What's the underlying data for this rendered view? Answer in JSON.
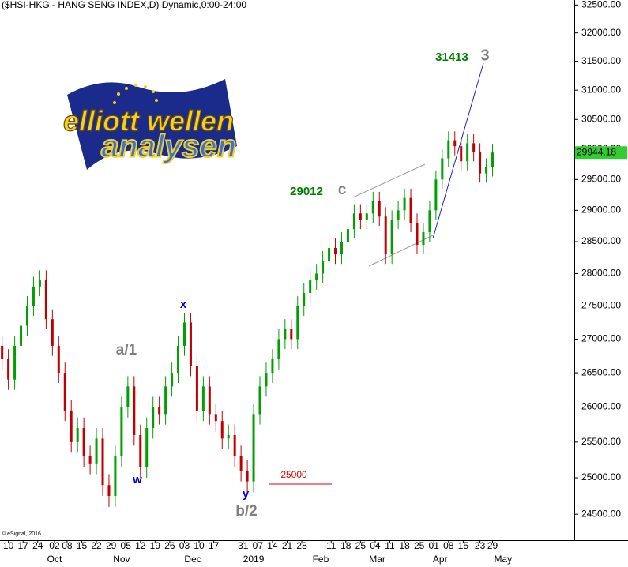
{
  "chart_data": {
    "type": "candlestick",
    "title": "($HSI-HKG - HANG SENG INDEX,D) Dynamic,0:00-24:00",
    "copyright": "© eSignal, 2016",
    "logo": {
      "line1": "elliott wellen",
      "line2": "analysen"
    },
    "y_scale": "log",
    "up_color": "#00a000",
    "down_color": "#c00000",
    "last_color": "#33cc33",
    "xlim": [
      0,
      274
    ],
    "ylim": [
      24150,
      32590
    ],
    "yticks": [
      {
        "value": 24500,
        "label": "24500.00"
      },
      {
        "value": 25000,
        "label": "25000.00"
      },
      {
        "value": 25500,
        "label": "25500.00"
      },
      {
        "value": 26000,
        "label": "26000.00"
      },
      {
        "value": 26500,
        "label": "26500.00"
      },
      {
        "value": 27000,
        "label": "27000.00"
      },
      {
        "value": 27500,
        "label": "27500.00"
      },
      {
        "value": 28000,
        "label": "28000.00"
      },
      {
        "value": 28500,
        "label": "28500.00"
      },
      {
        "value": 29000,
        "label": "29000.00"
      },
      {
        "value": 29500,
        "label": "29500.00"
      },
      {
        "value": 30000,
        "label": "30000.00"
      },
      {
        "value": 30500,
        "label": "30500.00"
      },
      {
        "value": 31000,
        "label": "31000.00"
      },
      {
        "value": 31500,
        "label": "31500.00"
      },
      {
        "value": 32000,
        "label": "32000.00"
      },
      {
        "value": 32500,
        "label": "32500.00"
      }
    ],
    "xticks": [
      {
        "value": 4,
        "label": "10"
      },
      {
        "value": 11,
        "label": "17"
      },
      {
        "value": 18,
        "label": "24"
      },
      {
        "value": 26,
        "label": "02"
      },
      {
        "value": 32,
        "label": "08"
      },
      {
        "value": 39,
        "label": "15"
      },
      {
        "value": 46,
        "label": "22"
      },
      {
        "value": 53,
        "label": "29"
      },
      {
        "value": 60,
        "label": "05"
      },
      {
        "value": 67,
        "label": "12"
      },
      {
        "value": 74,
        "label": "19"
      },
      {
        "value": 81,
        "label": "26"
      },
      {
        "value": 88,
        "label": "03"
      },
      {
        "value": 95,
        "label": "10"
      },
      {
        "value": 102,
        "label": "17"
      },
      {
        "value": 116,
        "label": "31"
      },
      {
        "value": 123,
        "label": "07"
      },
      {
        "value": 130,
        "label": "14"
      },
      {
        "value": 137,
        "label": "21"
      },
      {
        "value": 144,
        "label": "28"
      },
      {
        "value": 158,
        "label": "11"
      },
      {
        "value": 165,
        "label": "18"
      },
      {
        "value": 172,
        "label": "25"
      },
      {
        "value": 179,
        "label": "04"
      },
      {
        "value": 186,
        "label": "11"
      },
      {
        "value": 193,
        "label": "18"
      },
      {
        "value": 200,
        "label": "25"
      },
      {
        "value": 207,
        "label": "01"
      },
      {
        "value": 214,
        "label": "08"
      },
      {
        "value": 221,
        "label": "15"
      },
      {
        "value": 229,
        "label": "23"
      },
      {
        "value": 235,
        "label": "29"
      }
    ],
    "month_ticks": [
      {
        "value": 26,
        "label": "Oct"
      },
      {
        "value": 58,
        "label": "Nov"
      },
      {
        "value": 92,
        "label": "Dec"
      },
      {
        "value": 121,
        "label": "2019"
      },
      {
        "value": 153,
        "label": "Feb"
      },
      {
        "value": 180,
        "label": "Mar"
      },
      {
        "value": 210,
        "label": "Apr"
      },
      {
        "value": 240,
        "label": "May"
      }
    ],
    "x": [
      1,
      4,
      7,
      10,
      13,
      16,
      19,
      22,
      25,
      28,
      31,
      34,
      37,
      40,
      43,
      46,
      49,
      52,
      55,
      58,
      61,
      64,
      67,
      70,
      73,
      76,
      79,
      82,
      85,
      88,
      91,
      94,
      97,
      100,
      103,
      106,
      109,
      112,
      115,
      118,
      121,
      124,
      127,
      130,
      133,
      136,
      139,
      142,
      145,
      148,
      151,
      154,
      157,
      160,
      163,
      166,
      169,
      172,
      175,
      178,
      181,
      184,
      187,
      190,
      193,
      196,
      199,
      202,
      205,
      208,
      211,
      214,
      217,
      220,
      223,
      226,
      229,
      232,
      235
    ],
    "open": [
      26900,
      26700,
      26400,
      26900,
      27200,
      27500,
      27800,
      27900,
      27300,
      26900,
      26500,
      25950,
      25500,
      25700,
      25300,
      25200,
      25550,
      24900,
      24750,
      25300,
      26000,
      26300,
      25600,
      25150,
      25700,
      26000,
      25900,
      26300,
      26500,
      26900,
      27250,
      26600,
      25950,
      26300,
      25900,
      25800,
      25550,
      25600,
      25300,
      25100,
      24950,
      25900,
      26300,
      26500,
      26700,
      27000,
      27150,
      27000,
      27500,
      27700,
      27900,
      28000,
      28200,
      28400,
      28300,
      28500,
      28700,
      28950,
      28850,
      28950,
      29150,
      28900,
      28300,
      28850,
      29000,
      29200,
      28800,
      28450,
      28650,
      29000,
      29500,
      29850,
      30150,
      30050,
      29800,
      30100,
      29950,
      29600,
      29700
    ],
    "high": [
      27050,
      26850,
      27050,
      27350,
      27650,
      27950,
      28050,
      28050,
      27450,
      27050,
      26650,
      26100,
      25850,
      25850,
      25450,
      25700,
      25700,
      25050,
      25450,
      26150,
      26450,
      26450,
      25750,
      25850,
      26150,
      26150,
      26450,
      26650,
      27050,
      27400,
      27400,
      26750,
      26450,
      26450,
      26050,
      25950,
      25750,
      25750,
      25450,
      25250,
      26050,
      26450,
      26650,
      26850,
      27150,
      27300,
      27300,
      27650,
      27850,
      28050,
      28150,
      28350,
      28550,
      28550,
      28650,
      28850,
      29100,
      29100,
      29100,
      29300,
      29300,
      29050,
      29000,
      29150,
      29350,
      29350,
      28950,
      28800,
      29150,
      29650,
      30000,
      30300,
      30300,
      30200,
      30250,
      30250,
      30100,
      29850,
      30090
    ],
    "low": [
      26550,
      26250,
      26250,
      26750,
      27050,
      27350,
      27650,
      27150,
      26750,
      26350,
      25800,
      25350,
      25350,
      25150,
      25050,
      25050,
      24750,
      24600,
      24600,
      25150,
      25850,
      25450,
      25000,
      25000,
      25550,
      25750,
      25750,
      26150,
      26350,
      26750,
      26450,
      25800,
      25800,
      25750,
      25650,
      25400,
      25400,
      25150,
      24950,
      24800,
      24800,
      25750,
      26150,
      26350,
      26550,
      26850,
      26850,
      26850,
      27350,
      27550,
      27750,
      27850,
      28050,
      28150,
      28150,
      28350,
      28550,
      28700,
      28700,
      28800,
      28750,
      28150,
      28150,
      28700,
      28850,
      28650,
      28300,
      28300,
      28500,
      28850,
      29350,
      29700,
      29900,
      29650,
      29650,
      29800,
      29450,
      29450,
      29550
    ],
    "close": [
      26700,
      26400,
      26900,
      27200,
      27500,
      27800,
      27900,
      27300,
      26900,
      26500,
      25950,
      25500,
      25700,
      25300,
      25200,
      25550,
      24900,
      24750,
      25300,
      26000,
      26300,
      25600,
      25150,
      25700,
      26000,
      25900,
      26300,
      26500,
      26900,
      27250,
      26600,
      25950,
      26300,
      25900,
      25800,
      25550,
      25600,
      25300,
      25100,
      24950,
      25900,
      26300,
      26500,
      26700,
      27000,
      27150,
      27000,
      27500,
      27700,
      27900,
      28000,
      28200,
      28400,
      28300,
      28500,
      28700,
      28950,
      28850,
      28950,
      29150,
      28900,
      28300,
      28850,
      29000,
      29200,
      28800,
      28450,
      28650,
      29000,
      29500,
      29850,
      30150,
      30050,
      29800,
      30100,
      29950,
      29600,
      29700,
      29944.18
    ],
    "level": {
      "value": 25000,
      "color": "#e00000"
    },
    "annotations": [
      {
        "text": "31413",
        "color": "#008000"
      },
      {
        "text": "3",
        "color": "#808080"
      },
      {
        "text": "29012",
        "color": "#008000"
      },
      {
        "text": "c",
        "color": "#808080"
      },
      {
        "text": "x",
        "color": "#0000cc"
      },
      {
        "text": "a/1",
        "color": "#808080"
      },
      {
        "text": "w",
        "color": "#0000cc"
      },
      {
        "text": "y",
        "color": "#0000cc"
      },
      {
        "text": "b/2",
        "color": "#808080"
      }
    ]
  }
}
